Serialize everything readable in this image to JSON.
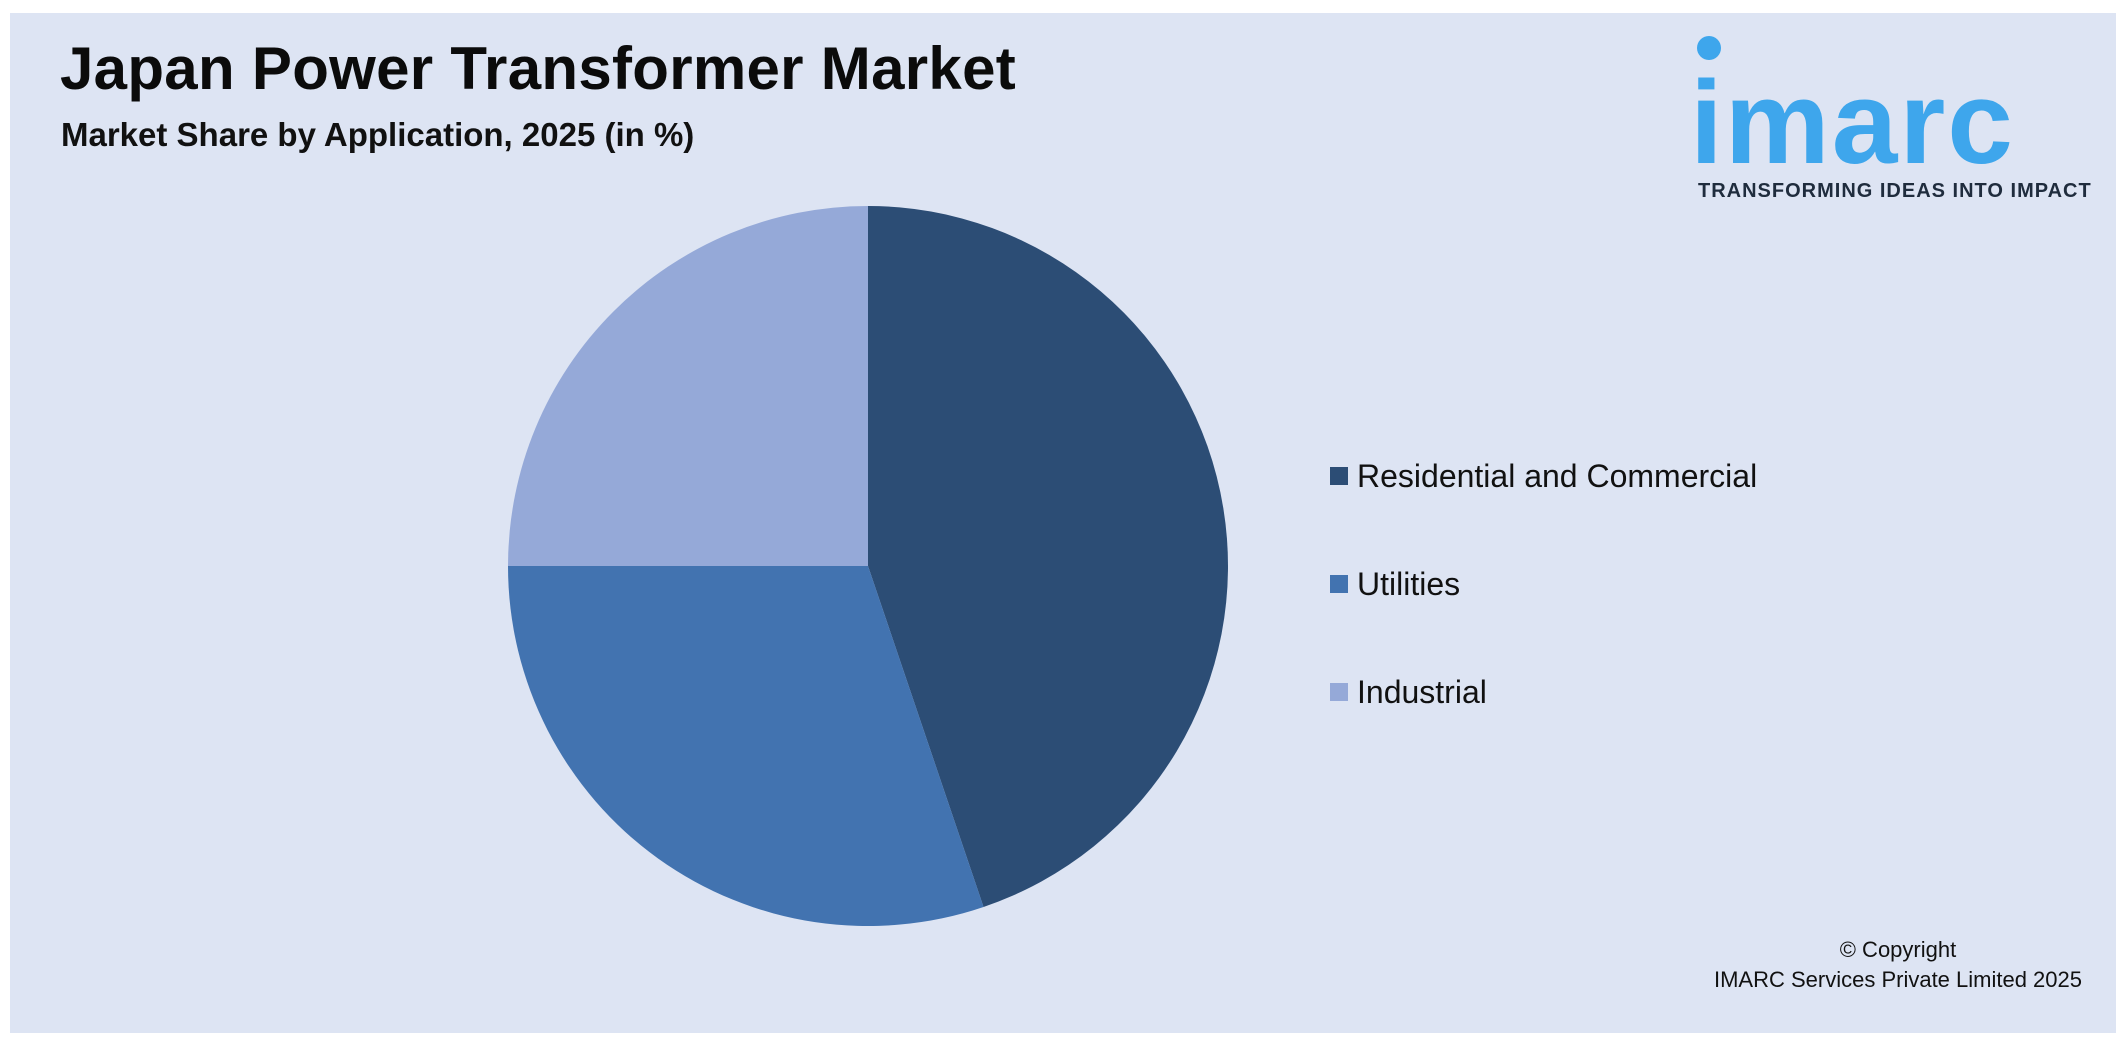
{
  "header": {
    "title": "Japan Power Transformer Market",
    "subtitle": "Market Share by Application, 2025 (in %)"
  },
  "logo": {
    "wordmark": "imarc",
    "tagline": "TRANSFORMING IDEAS INTO IMPACT",
    "color": "#3ea6ec"
  },
  "chart_data": {
    "type": "pie",
    "title": "Japan Power Transformer Market",
    "subtitle": "Market Share by Application, 2025 (in %)",
    "categories": [
      "Residential and Commercial",
      "Utilities",
      "Industrial"
    ],
    "values": [
      44.8,
      30.2,
      25.0
    ],
    "colors": [
      "#2c4d75",
      "#4273b0",
      "#95a9d8"
    ],
    "start_angle_deg": 0,
    "direction": "clockwise",
    "legend_position": "right"
  },
  "footer": {
    "copyright_line1": "© Copyright",
    "copyright_line2": "IMARC Services Private Limited 2025"
  }
}
